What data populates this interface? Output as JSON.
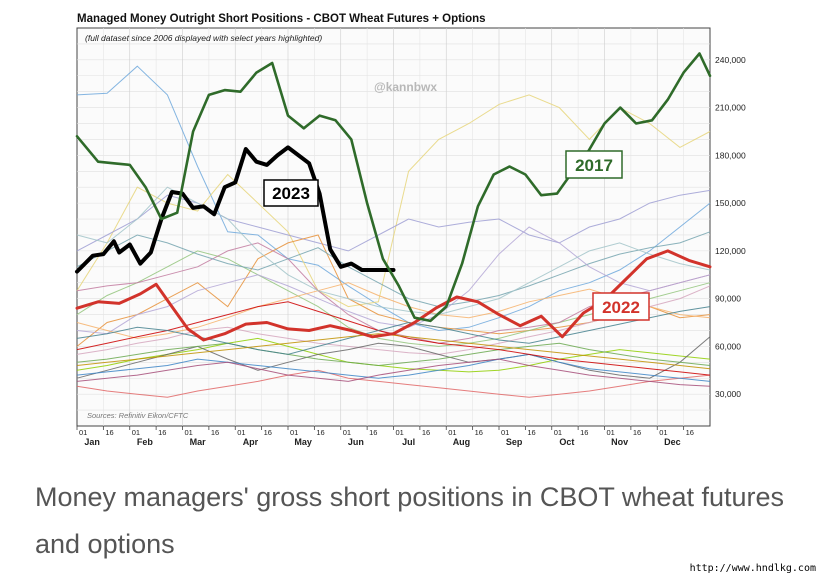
{
  "chart_data": {
    "type": "line",
    "title": "Managed Money Outright Short Positions - CBOT Wheat Futures + Options",
    "subtitle": "(full dataset since 2006 displayed with select years highlighted)",
    "watermark": "@kannbwx",
    "source": "Sources: Refinitiv Eikon/CFTC",
    "yticks": [
      "30,000",
      "60,000",
      "90,000",
      "120,000",
      "150,000",
      "180,000",
      "210,000",
      "240,000"
    ],
    "ylim": [
      10000,
      260000
    ],
    "x_day_ticks": [
      "01",
      "16",
      "01",
      "16",
      "01",
      "16",
      "01",
      "16",
      "01",
      "16",
      "01",
      "16",
      "01",
      "16",
      "01",
      "16",
      "01",
      "16",
      "01",
      "16",
      "01",
      "16",
      "01",
      "16"
    ],
    "months": [
      "Jan",
      "Feb",
      "Mar",
      "Apr",
      "May",
      "Jun",
      "Jul",
      "Aug",
      "Sep",
      "Oct",
      "Nov",
      "Dec"
    ],
    "highlight_series": [
      {
        "name": "2023",
        "color": "#000000",
        "x": [
          0,
          0.3,
          0.5,
          0.7,
          0.8,
          1.0,
          1.2,
          1.4,
          1.6,
          1.8,
          2.0,
          2.2,
          2.4,
          2.6,
          2.8,
          3.0,
          3.2,
          3.4,
          3.6,
          3.8,
          4.0,
          4.2,
          4.4,
          4.6,
          4.8,
          5.0,
          5.2,
          5.4,
          5.6,
          5.8,
          6.0
        ],
        "values": [
          107000,
          117000,
          118000,
          126000,
          119000,
          124000,
          112000,
          119000,
          140000,
          157000,
          156000,
          147000,
          148000,
          143000,
          160000,
          163000,
          184000,
          176000,
          174000,
          180000,
          185000,
          180000,
          175000,
          156000,
          121000,
          110000,
          112000,
          108000,
          108000,
          108000,
          108000
        ]
      },
      {
        "name": "2022",
        "color": "#d2332b",
        "x": [
          0,
          0.4,
          0.8,
          1.2,
          1.5,
          1.8,
          2.1,
          2.4,
          2.8,
          3.2,
          3.6,
          4.0,
          4.4,
          4.8,
          5.2,
          5.6,
          6.0,
          6.4,
          6.8,
          7.2,
          7.6,
          8.0,
          8.4,
          8.8,
          9.2,
          9.6,
          10.0,
          10.4,
          10.8,
          11.2,
          11.6,
          12.0
        ],
        "values": [
          84000,
          88000,
          87000,
          93000,
          99000,
          85000,
          71000,
          64000,
          68000,
          74000,
          75000,
          71000,
          70000,
          73000,
          70000,
          66000,
          68000,
          75000,
          84000,
          91000,
          88000,
          80000,
          73000,
          79000,
          66000,
          81000,
          89000,
          102000,
          115000,
          120000,
          114000,
          110000
        ]
      },
      {
        "name": "2017",
        "color": "#2f6b2a",
        "x": [
          0,
          0.4,
          0.7,
          1.0,
          1.3,
          1.6,
          1.9,
          2.2,
          2.5,
          2.8,
          3.1,
          3.4,
          3.7,
          4.0,
          4.3,
          4.6,
          4.9,
          5.2,
          5.5,
          5.8,
          6.1,
          6.4,
          6.7,
          7.0,
          7.3,
          7.6,
          7.9,
          8.2,
          8.5,
          8.8,
          9.1,
          9.4,
          9.7,
          10.0,
          10.3,
          10.6,
          10.9,
          11.2,
          11.5,
          11.8,
          12.0
        ],
        "values": [
          192000,
          176000,
          175000,
          174000,
          160000,
          140000,
          144000,
          195000,
          218000,
          221000,
          220000,
          232000,
          238000,
          205000,
          197000,
          205000,
          202000,
          190000,
          150000,
          115000,
          98000,
          78000,
          76000,
          85000,
          112000,
          148000,
          168000,
          173000,
          168000,
          155000,
          156000,
          170000,
          183000,
          200000,
          210000,
          200000,
          202000,
          215000,
          232000,
          244000,
          230000
        ]
      }
    ],
    "highlight_labels": [
      "2023",
      "2022",
      "2017"
    ],
    "background_series": [
      {
        "color": "#6fa8dc",
        "values": [
          218000,
          219000,
          236000,
          218000,
          173000,
          132000,
          130000,
          115000,
          111000,
          98000,
          86000,
          75000,
          70000,
          72000,
          78000,
          85000,
          95000,
          100000,
          108000,
          120000,
          135000,
          150000
        ]
      },
      {
        "color": "#e6d57a",
        "values": [
          95000,
          125000,
          160000,
          150000,
          145000,
          168000,
          150000,
          132000,
          95000,
          85000,
          88000,
          170000,
          190000,
          200000,
          212000,
          218000,
          210000,
          190000,
          210000,
          200000,
          185000,
          195000
        ]
      },
      {
        "color": "#9f9fd4",
        "values": [
          120000,
          130000,
          140000,
          155000,
          150000,
          140000,
          135000,
          130000,
          125000,
          120000,
          130000,
          140000,
          135000,
          138000,
          140000,
          130000,
          125000,
          135000,
          140000,
          150000,
          155000,
          158000
        ]
      },
      {
        "color": "#e69138",
        "values": [
          60000,
          75000,
          80000,
          90000,
          100000,
          85000,
          115000,
          125000,
          130000,
          90000,
          80000,
          75000,
          72000,
          70000,
          68000,
          70000,
          72000,
          75000,
          80000,
          85000,
          78000,
          80000
        ]
      },
      {
        "color": "#93c47d",
        "values": [
          80000,
          92000,
          100000,
          110000,
          120000,
          115000,
          105000,
          95000,
          85000,
          72000,
          65000,
          62000,
          60000,
          62000,
          65000,
          70000,
          75000,
          80000,
          85000,
          90000,
          95000,
          100000
        ]
      },
      {
        "color": "#c27ba0",
        "values": [
          95000,
          98000,
          100000,
          105000,
          110000,
          120000,
          125000,
          115000,
          95000,
          80000,
          70000,
          66000,
          62000,
          65000,
          70000,
          72000,
          75000,
          85000,
          90000,
          95000,
          100000,
          105000
        ]
      },
      {
        "color": "#76a5af",
        "values": [
          110000,
          120000,
          130000,
          125000,
          118000,
          112000,
          108000,
          115000,
          122000,
          110000,
          100000,
          90000,
          85000,
          88000,
          92000,
          98000,
          105000,
          112000,
          118000,
          122000,
          125000,
          132000
        ]
      },
      {
        "color": "#b4a7d6",
        "values": [
          70000,
          68000,
          80000,
          85000,
          95000,
          100000,
          105000,
          98000,
          90000,
          82000,
          75000,
          72000,
          80000,
          95000,
          118000,
          135000,
          125000,
          110000,
          100000,
          95000,
          100000,
          105000
        ]
      },
      {
        "color": "#f6b26b",
        "values": [
          75000,
          70000,
          65000,
          68000,
          72000,
          78000,
          85000,
          90000,
          95000,
          100000,
          92000,
          85000,
          80000,
          78000,
          82000,
          88000,
          92000,
          96000,
          90000,
          85000,
          80000,
          78000
        ]
      },
      {
        "color": "#a2c4c9",
        "values": [
          130000,
          125000,
          140000,
          160000,
          150000,
          140000,
          120000,
          105000,
          95000,
          90000,
          85000,
          82000,
          80000,
          85000,
          90000,
          100000,
          110000,
          120000,
          125000,
          118000,
          112000,
          108000
        ]
      },
      {
        "color": "#d5a6bd",
        "values": [
          55000,
          58000,
          62000,
          65000,
          70000,
          72000,
          68000,
          65000,
          62000,
          60000,
          58000,
          56000,
          55000,
          58000,
          62000,
          66000,
          70000,
          75000,
          80000,
          85000,
          90000,
          98000
        ]
      },
      {
        "color": "#8fce00",
        "values": [
          45000,
          48000,
          52000,
          55000,
          58000,
          62000,
          65000,
          60000,
          55000,
          50000,
          48000,
          46000,
          45000,
          44000,
          45000,
          48000,
          52000,
          55000,
          58000,
          56000,
          54000,
          52000
        ]
      },
      {
        "color": "#666666",
        "values": [
          40000,
          45000,
          50000,
          55000,
          60000,
          52000,
          45000,
          50000,
          55000,
          58000,
          62000,
          60000,
          55000,
          50000,
          52000,
          55000,
          50000,
          45000,
          42000,
          40000,
          50000,
          66000
        ]
      },
      {
        "color": "#e06666",
        "values": [
          35000,
          32000,
          30000,
          28000,
          32000,
          35000,
          38000,
          42000,
          45000,
          40000,
          38000,
          36000,
          34000,
          32000,
          30000,
          28000,
          30000,
          32000,
          35000,
          38000,
          40000,
          42000
        ]
      },
      {
        "color": "#3d85c6",
        "values": [
          42000,
          44000,
          46000,
          48000,
          52000,
          50000,
          48000,
          46000,
          44000,
          42000,
          40000,
          42000,
          45000,
          48000,
          52000,
          55000,
          50000,
          46000,
          44000,
          42000,
          40000,
          38000
        ]
      },
      {
        "color": "#6aa84f",
        "values": [
          50000,
          52000,
          55000,
          58000,
          60000,
          62000,
          58000,
          55000,
          52000,
          50000,
          48000,
          50000,
          52000,
          55000,
          58000,
          60000,
          62000,
          58000,
          55000,
          52000,
          50000,
          48000
        ]
      },
      {
        "color": "#a64d79",
        "values": [
          38000,
          40000,
          42000,
          45000,
          48000,
          50000,
          46000,
          42000,
          40000,
          38000,
          42000,
          45000,
          48000,
          50000,
          52000,
          48000,
          45000,
          42000,
          40000,
          38000,
          36000,
          35000
        ]
      },
      {
        "color": "#cc0000",
        "values": [
          58000,
          62000,
          66000,
          70000,
          75000,
          80000,
          85000,
          88000,
          82000,
          76000,
          70000,
          65000,
          62000,
          60000,
          58000,
          55000,
          52000,
          50000,
          48000,
          46000,
          44000,
          42000
        ]
      },
      {
        "color": "#45818e",
        "values": [
          65000,
          68000,
          72000,
          70000,
          66000,
          62000,
          58000,
          55000,
          60000,
          65000,
          70000,
          75000,
          72000,
          68000,
          64000,
          62000,
          66000,
          70000,
          74000,
          78000,
          82000,
          85000
        ]
      },
      {
        "color": "#bf9000",
        "values": [
          48000,
          50000,
          52000,
          54000,
          56000,
          58000,
          60000,
          62000,
          64000,
          66000,
          68000,
          66000,
          64000,
          62000,
          60000,
          58000,
          56000,
          54000,
          52000,
          50000,
          48000,
          46000
        ]
      }
    ]
  },
  "caption": "Money managers' gross short positions in CBOT wheat futures and options",
  "footer_url": "http://www.hndlkg.com"
}
